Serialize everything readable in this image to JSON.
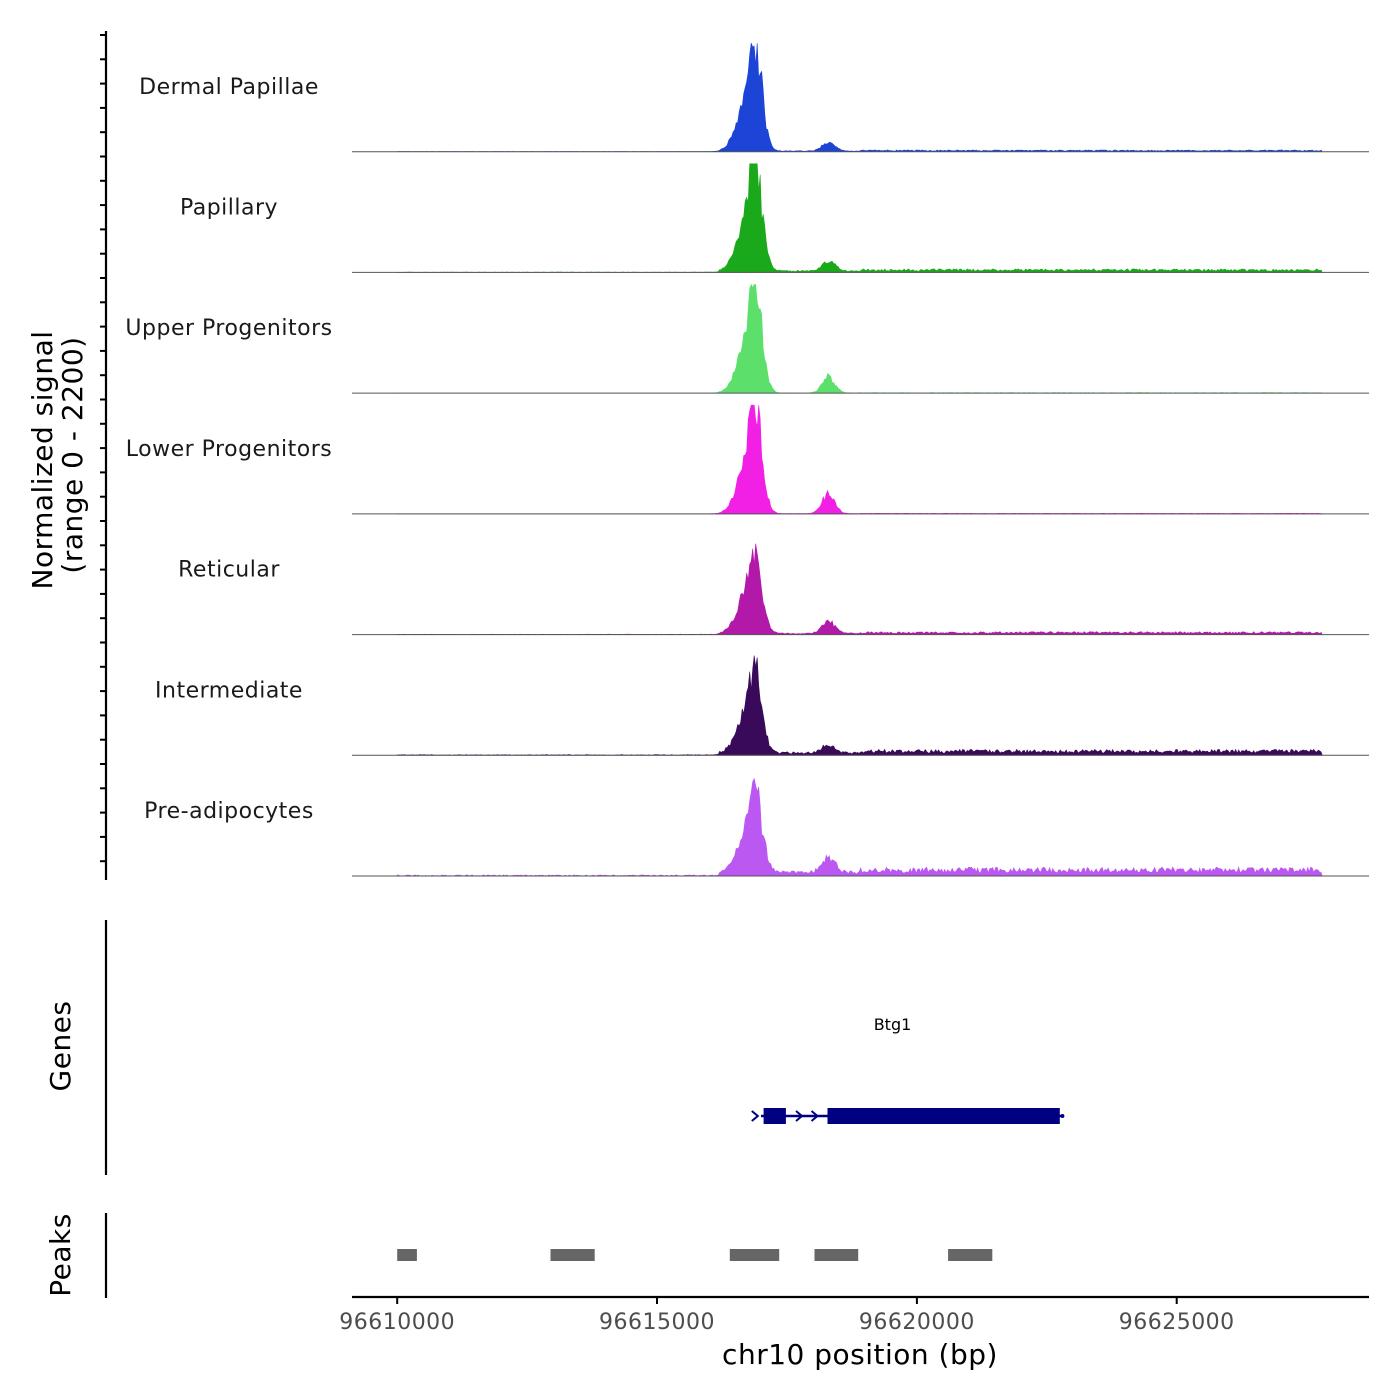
{
  "chart_data": {
    "type": "area",
    "title": "",
    "chromosome": "chr10",
    "xlabel": "chr10 position (bp)",
    "ylabel_line1": "Normalized signal",
    "ylabel_line2": "(range 0 - 2200)",
    "y_range": [
      0,
      2200
    ],
    "xlim": [
      96609130,
      96628700
    ],
    "data_end": 96627800,
    "x_ticks": [
      96610000,
      96615000,
      96620000,
      96625000
    ],
    "x_tick_labels": [
      "96610000",
      "96615000",
      "96620000",
      "96625000"
    ],
    "series": [
      {
        "name": "Dermal Papillae",
        "color": "#1c45d8",
        "peak_pos": 96616900,
        "peak_value": 2200,
        "secondary_value": 230,
        "background_value": 30
      },
      {
        "name": "Papillary",
        "color": "#1aa91a",
        "peak_pos": 96616900,
        "peak_value": 2200,
        "secondary_value": 260,
        "background_value": 60
      },
      {
        "name": "Upper Progenitors",
        "color": "#5ddf6c",
        "peak_pos": 96616900,
        "peak_value": 2200,
        "secondary_value": 400,
        "background_value": 10
      },
      {
        "name": "Lower Progenitors",
        "color": "#f21fe4",
        "peak_pos": 96616900,
        "peak_value": 2200,
        "secondary_value": 500,
        "background_value": 10
      },
      {
        "name": "Reticular",
        "color": "#b219a9",
        "peak_pos": 96616900,
        "peak_value": 1700,
        "secondary_value": 320,
        "background_value": 50
      },
      {
        "name": "Intermediate",
        "color": "#3a0a5a",
        "peak_pos": 96616900,
        "peak_value": 1700,
        "secondary_value": 200,
        "background_value": 100
      },
      {
        "name": "Pre-adipocytes",
        "color": "#bb58f2",
        "peak_pos": 96616900,
        "peak_value": 1700,
        "secondary_value": 400,
        "background_value": 150
      }
    ],
    "genes": {
      "title": "Genes",
      "items": [
        {
          "name": "Btg1",
          "strand": "+",
          "color": "#000080",
          "start": 96617000,
          "end": 96622800,
          "exons": [
            [
              96617050,
              96617480
            ],
            [
              96618280,
              96622750
            ]
          ]
        }
      ]
    },
    "peaks": {
      "title": "Peaks",
      "color": "#666666",
      "regions": [
        [
          96610000,
          96610380
        ],
        [
          96612950,
          96613800
        ],
        [
          96616400,
          96617350
        ],
        [
          96618030,
          96618870
        ],
        [
          96620600,
          96621450
        ]
      ]
    }
  }
}
